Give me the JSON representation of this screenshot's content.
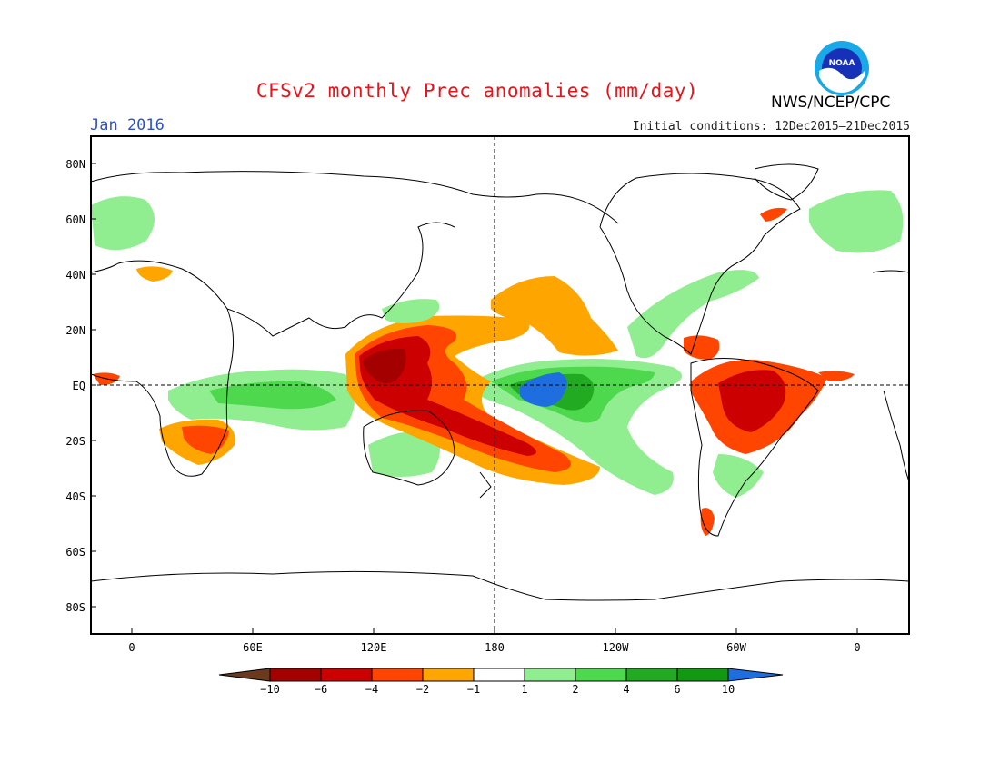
{
  "header": {
    "title": "CFSv2 monthly Prec anomalies (mm/day)",
    "month": "Jan 2016",
    "agency": "NWS/NCEP/CPC",
    "initial_conditions": "Initial conditions: 12Dec2015–21Dec2015",
    "logo_text": "NOAA"
  },
  "map": {
    "lat_labels": [
      "80N",
      "60N",
      "40N",
      "20N",
      "EQ",
      "20S",
      "40S",
      "60S",
      "80S"
    ],
    "lon_labels": [
      "0",
      "60E",
      "120E",
      "180",
      "120W",
      "60W",
      "0"
    ],
    "projection": "cylindrical equidistant, centered 180",
    "reference_lines": [
      "equator",
      "dateline"
    ]
  },
  "colorbar": {
    "ticks": [
      "−10",
      "−6",
      "−4",
      "−2",
      "−1",
      "1",
      "2",
      "4",
      "6",
      "10"
    ],
    "colors": [
      "#6b3a1e",
      "#a50000",
      "#cc0000",
      "#ff4500",
      "#ffa500",
      "#ffffff",
      "#90ee90",
      "#4ed84e",
      "#22aa22",
      "#119911",
      "#1e6ee0"
    ]
  },
  "chart_data": {
    "type": "heatmap",
    "variable": "Prec anomalies",
    "units": "mm/day",
    "features": [
      {
        "region": "central equatorial Pacific",
        "anomaly_class": ">10"
      },
      {
        "region": "eastern equatorial Pacific",
        "anomaly_class": "4 to 10"
      },
      {
        "region": "western Pacific / Maritime Continent",
        "anomaly_class": "-6 to -10"
      },
      {
        "region": "South Pacific convergence zone",
        "anomaly_class": "-4 to -10"
      },
      {
        "region": "subtropical North Pacific",
        "anomaly_class": "-1 to -2"
      },
      {
        "region": "northern Brazil",
        "anomaly_class": "-4 to -10"
      },
      {
        "region": "southern Africa",
        "anomaly_class": "-2 to -6"
      },
      {
        "region": "equatorial Indian Ocean",
        "anomaly_class": "1 to 4"
      },
      {
        "region": "southeastern South America",
        "anomaly_class": "1 to 4"
      },
      {
        "region": "western Europe",
        "anomaly_class": "1 to 4"
      },
      {
        "region": "Gulf of Mexico / southeast US",
        "anomaly_class": "1 to 4"
      }
    ]
  }
}
